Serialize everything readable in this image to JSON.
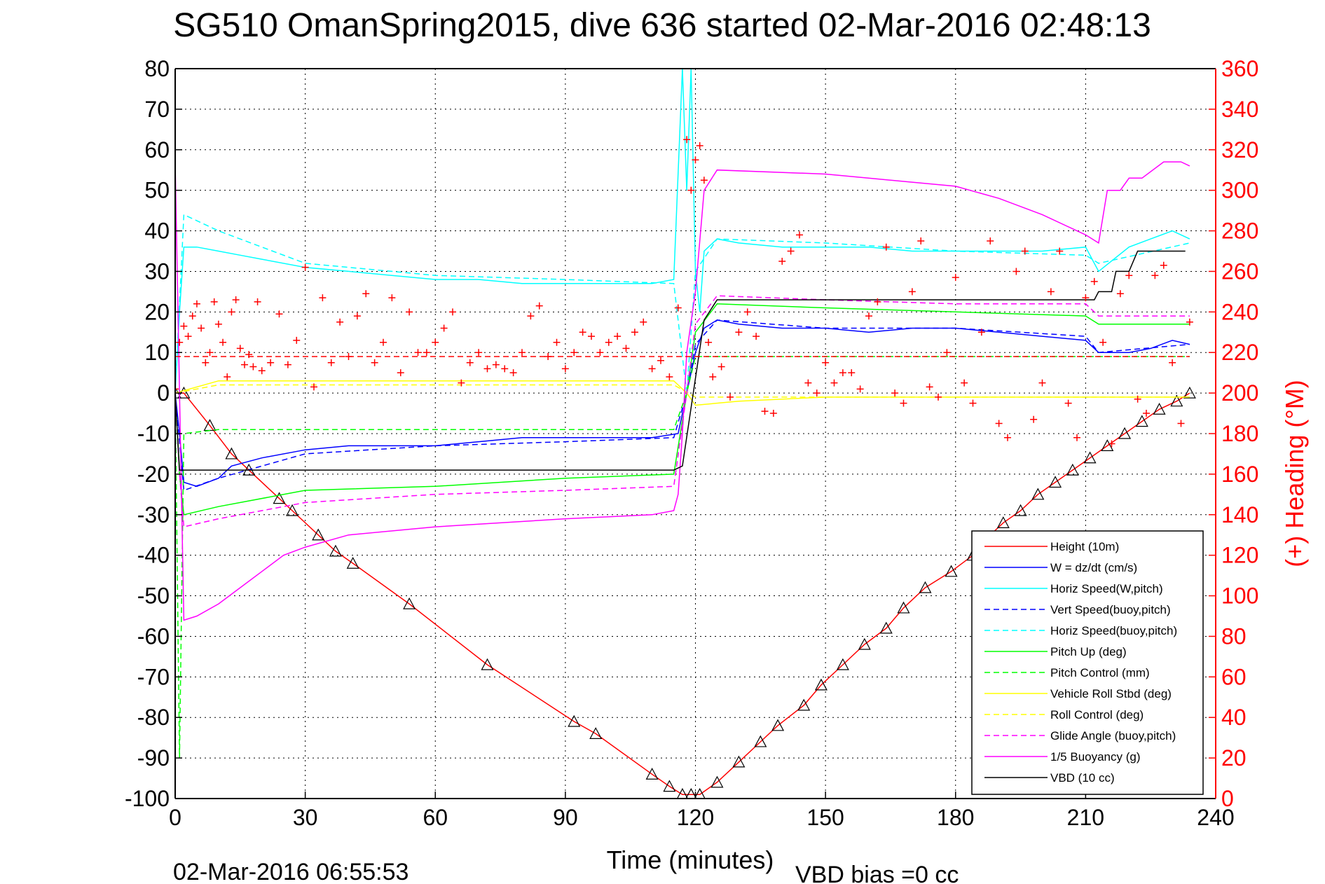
{
  "chart_data": {
    "type": "line",
    "title": "SG510 OmanSpring2015, dive 636 started 02-Mar-2016 02:48:13",
    "xlabel": "Time (minutes)",
    "ylabel": "",
    "ylabel_right": "(+) Heading (°M)",
    "xlim": [
      0,
      240
    ],
    "ylim": [
      -100,
      80
    ],
    "ylim_right": [
      0,
      360
    ],
    "x_ticks": [
      "0",
      "30",
      "60",
      "90",
      "120",
      "150",
      "180",
      "210",
      "240"
    ],
    "y_ticks": [
      "80",
      "70",
      "60",
      "50",
      "40",
      "30",
      "20",
      "10",
      "0",
      "-10",
      "-20",
      "-30",
      "-40",
      "-50",
      "-60",
      "-70",
      "-80",
      "-90",
      "-100"
    ],
    "y_right_ticks": [
      "360",
      "340",
      "320",
      "300",
      "280",
      "260",
      "240",
      "220",
      "200",
      "180",
      "160",
      "140",
      "120",
      "100",
      "80",
      "60",
      "40",
      "20",
      "0"
    ],
    "grid": true,
    "legend_position": "bottom-right",
    "bottom_left_text": "02-Mar-2016 06:55:53",
    "bottom_note": "VBD bias =0 cc",
    "colors": {
      "red": "#ff0000",
      "blue": "#0000ff",
      "cyan": "#00ffff",
      "green": "#00ff00",
      "yellow": "#ffff00",
      "magenta": "#ff00ff",
      "black": "#000000"
    },
    "series": [
      {
        "name": "Height (10m)",
        "color": "#ff0000",
        "style": "solid",
        "x": [
          0,
          2,
          8,
          13,
          17,
          24,
          27,
          33,
          37,
          41,
          54,
          72,
          92,
          97,
          110,
          114,
          117,
          119,
          121,
          125,
          130,
          135,
          139,
          145,
          149,
          154,
          159,
          164,
          168,
          173,
          179,
          184,
          187,
          191,
          195,
          199,
          203,
          207,
          211,
          215,
          219,
          223,
          227,
          231,
          234
        ],
        "y": [
          0,
          0,
          -8,
          -15,
          -19,
          -26,
          -29,
          -35,
          -39,
          -42,
          -52,
          -67,
          -81,
          -84,
          -94,
          -97,
          -99,
          -99,
          -99,
          -96,
          -91,
          -86,
          -82,
          -77,
          -72,
          -67,
          -62,
          -58,
          -53,
          -48,
          -44,
          -40,
          -36,
          -32,
          -29,
          -25,
          -22,
          -19,
          -16,
          -13,
          -10,
          -7,
          -4,
          -2,
          0
        ]
      },
      {
        "name": "W = dz/dt (cm/s)",
        "color": "#0000ff",
        "style": "solid",
        "x": [
          0,
          1,
          2,
          5,
          10,
          13,
          20,
          30,
          40,
          50,
          60,
          70,
          80,
          90,
          100,
          110,
          116,
          118,
          120,
          122,
          125,
          130,
          140,
          150,
          160,
          170,
          180,
          190,
          200,
          210,
          213,
          220,
          225,
          230,
          234
        ],
        "y": [
          0,
          -10,
          -22,
          -23,
          -21,
          -18,
          -16,
          -14,
          -13,
          -13,
          -13,
          -12,
          -11,
          -11,
          -11,
          -11,
          -10,
          0,
          10,
          16,
          18,
          17,
          16,
          16,
          15,
          16,
          16,
          15,
          14,
          13,
          10,
          10,
          11,
          13,
          12
        ]
      },
      {
        "name": "Horiz Speed(W,pitch)",
        "color": "#00ffff",
        "style": "solid",
        "x": [
          0,
          1,
          2,
          5,
          10,
          15,
          20,
          30,
          40,
          50,
          60,
          70,
          80,
          90,
          100,
          110,
          115,
          117,
          118,
          119,
          120,
          121,
          122,
          125,
          130,
          140,
          150,
          160,
          170,
          180,
          190,
          200,
          210,
          213,
          220,
          225,
          230,
          234
        ],
        "y": [
          0,
          20,
          36,
          36,
          35,
          34,
          33,
          31,
          30,
          29,
          28,
          28,
          27,
          27,
          27,
          27,
          28,
          80,
          50,
          80,
          30,
          20,
          35,
          38,
          37,
          36,
          36,
          36,
          35,
          35,
          35,
          35,
          36,
          30,
          36,
          38,
          40,
          38
        ]
      },
      {
        "name": "Vert Speed(buoy,pitch)",
        "color": "#0000ff",
        "style": "dashed",
        "x": [
          0,
          2,
          10,
          30,
          60,
          90,
          115,
          118,
          120,
          125,
          150,
          180,
          210,
          213,
          234
        ],
        "y": [
          0,
          -24,
          -21,
          -15,
          -13,
          -12,
          -11,
          0,
          12,
          18,
          16,
          16,
          14,
          10,
          12
        ]
      },
      {
        "name": "Horiz Speed(buoy,pitch)",
        "color": "#00ffff",
        "style": "dashed",
        "x": [
          0,
          2,
          10,
          30,
          60,
          90,
          115,
          118,
          120,
          125,
          150,
          180,
          210,
          213,
          234
        ],
        "y": [
          0,
          44,
          40,
          32,
          29,
          28,
          27,
          0,
          30,
          38,
          37,
          35,
          34,
          32,
          37
        ]
      },
      {
        "name": "Pitch Up (deg)",
        "color": "#00ff00",
        "style": "solid",
        "x": [
          0,
          1,
          2,
          10,
          30,
          60,
          90,
          115,
          118,
          120,
          125,
          150,
          180,
          210,
          213,
          220,
          234
        ],
        "y": [
          0,
          -20,
          -30,
          -28,
          -24,
          -23,
          -21,
          -20,
          0,
          15,
          22,
          21,
          20,
          19,
          17,
          17,
          17
        ]
      },
      {
        "name": "Pitch Control (mm)",
        "color": "#00ff00",
        "style": "dashed",
        "x": [
          0,
          1,
          2,
          10,
          115,
          118,
          120,
          234
        ],
        "y": [
          0,
          -90,
          -10,
          -9,
          -9,
          0,
          9,
          9
        ]
      },
      {
        "name": "Vehicle Roll Stbd (deg)",
        "color": "#ffff00",
        "style": "solid",
        "x": [
          0,
          10,
          30,
          60,
          90,
          115,
          118,
          120,
          130,
          150,
          180,
          210,
          234
        ],
        "y": [
          0,
          3,
          3,
          3,
          3,
          3,
          0,
          -3,
          -2,
          -1,
          -1,
          -1,
          -1
        ]
      },
      {
        "name": "Roll Control (deg)",
        "color": "#ffff00",
        "style": "dashed",
        "x": [
          0,
          10,
          115,
          120,
          234
        ],
        "y": [
          0,
          2,
          2,
          -1,
          -1
        ]
      },
      {
        "name": "Glide Angle (buoy,pitch)",
        "color": "#ff00ff",
        "style": "dashed",
        "x": [
          0,
          1,
          2,
          10,
          30,
          60,
          90,
          115,
          118,
          120,
          125,
          150,
          180,
          210,
          213,
          234
        ],
        "y": [
          0,
          -20,
          -33,
          -31,
          -27,
          -25,
          -24,
          -23,
          0,
          17,
          24,
          23,
          22,
          22,
          19,
          19
        ]
      },
      {
        "name": "1/5 Buoyancy (g)",
        "color": "#ff00ff",
        "style": "solid",
        "x": [
          0,
          1,
          2,
          5,
          10,
          15,
          20,
          25,
          30,
          40,
          60,
          90,
          110,
          115,
          116,
          117,
          118,
          120,
          122,
          125,
          150,
          170,
          180,
          190,
          200,
          210,
          213,
          215,
          218,
          220,
          223,
          228,
          232,
          234
        ],
        "y": [
          57,
          0,
          -56,
          -55,
          -52,
          -48,
          -44,
          -40,
          -38,
          -35,
          -33,
          -31,
          -30,
          -29,
          -25,
          -10,
          10,
          25,
          50,
          55,
          54,
          52,
          51,
          48,
          44,
          39,
          37,
          50,
          50,
          53,
          53,
          57,
          57,
          56
        ]
      },
      {
        "name": "VBD (10 cc)",
        "color": "#000000",
        "style": "solid",
        "x": [
          0,
          1,
          2,
          115,
          117,
          122,
          125,
          212,
          213,
          216,
          217,
          220,
          222,
          230,
          233
        ],
        "y": [
          0,
          -19,
          -19,
          -19,
          -18,
          18,
          23,
          23,
          25,
          25,
          30,
          30,
          35,
          35,
          35
        ]
      },
      {
        "name": "",
        "color": "#ff0000",
        "style": "dashed",
        "x": [
          0,
          234
        ],
        "y": [
          9,
          9
        ]
      },
      {
        "name": "",
        "color": "#ff0000",
        "style": "plus",
        "axis": "right",
        "x": [
          0,
          1,
          2,
          3,
          4,
          5,
          6,
          7,
          8,
          9,
          10,
          11,
          12,
          13,
          14,
          15,
          16,
          17,
          18,
          19,
          20,
          22,
          24,
          26,
          28,
          30,
          32,
          34,
          36,
          38,
          40,
          42,
          44,
          46,
          48,
          50,
          52,
          54,
          56,
          58,
          60,
          62,
          64,
          66,
          68,
          70,
          72,
          74,
          76,
          78,
          80,
          82,
          84,
          86,
          88,
          90,
          92,
          94,
          96,
          98,
          100,
          102,
          104,
          106,
          108,
          110,
          112,
          114,
          116,
          118,
          119,
          120,
          121,
          122,
          123,
          124,
          126,
          128,
          130,
          132,
          134,
          136,
          138,
          140,
          142,
          144,
          146,
          148,
          150,
          152,
          154,
          156,
          158,
          160,
          162,
          164,
          166,
          168,
          170,
          172,
          174,
          176,
          178,
          180,
          182,
          184,
          186,
          188,
          190,
          192,
          194,
          196,
          198,
          200,
          202,
          204,
          206,
          208,
          210,
          212,
          214,
          216,
          218,
          220,
          222,
          224,
          226,
          228,
          230,
          232,
          234
        ],
        "y": [
          202,
          225,
          233,
          228,
          238,
          244,
          232,
          215,
          220,
          245,
          234,
          225,
          208,
          240,
          246,
          222,
          214,
          219,
          213,
          245,
          211,
          215,
          239,
          214,
          226,
          262,
          203,
          247,
          215,
          235,
          218,
          238,
          249,
          215,
          225,
          247,
          210,
          240,
          220,
          220,
          225,
          232,
          240,
          205,
          215,
          220,
          212,
          214,
          212,
          210,
          220,
          238,
          243,
          218,
          225,
          212,
          220,
          230,
          228,
          220,
          225,
          228,
          222,
          230,
          235,
          212,
          216,
          208,
          242,
          325,
          300,
          315,
          322,
          305,
          225,
          208,
          213,
          198,
          230,
          240,
          228,
          191,
          190,
          265,
          270,
          278,
          205,
          200,
          215,
          205,
          210,
          210,
          202,
          238,
          245,
          272,
          200,
          195,
          250,
          275,
          203,
          198,
          220,
          257,
          205,
          195,
          230,
          275,
          185,
          178,
          260,
          270,
          187,
          205,
          250,
          270,
          195,
          178,
          247,
          255,
          225,
          175,
          249,
          258,
          197,
          190,
          258,
          263,
          215,
          185,
          235
        ]
      }
    ]
  },
  "legend": {
    "items": [
      {
        "label": "Height (10m)",
        "color": "#ff0000",
        "style": "solid"
      },
      {
        "label": "W = dz/dt (cm/s)",
        "color": "#0000ff",
        "style": "solid"
      },
      {
        "label": "Horiz Speed(W,pitch)",
        "color": "#00ffff",
        "style": "solid"
      },
      {
        "label": "Vert Speed(buoy,pitch)",
        "color": "#0000ff",
        "style": "dashed"
      },
      {
        "label": "Horiz Speed(buoy,pitch)",
        "color": "#00ffff",
        "style": "dashed"
      },
      {
        "label": "Pitch Up (deg)",
        "color": "#00ff00",
        "style": "solid"
      },
      {
        "label": "Pitch Control (mm)",
        "color": "#00ff00",
        "style": "dashed"
      },
      {
        "label": "Vehicle Roll Stbd (deg)",
        "color": "#ffff00",
        "style": "solid"
      },
      {
        "label": "Roll Control (deg)",
        "color": "#ffff00",
        "style": "dashed"
      },
      {
        "label": "Glide Angle (buoy,pitch)",
        "color": "#ff00ff",
        "style": "dashed"
      },
      {
        "label": "1/5 Buoyancy (g)",
        "color": "#ff00ff",
        "style": "solid"
      },
      {
        "label": "VBD (10 cc)",
        "color": "#000000",
        "style": "solid"
      }
    ]
  }
}
